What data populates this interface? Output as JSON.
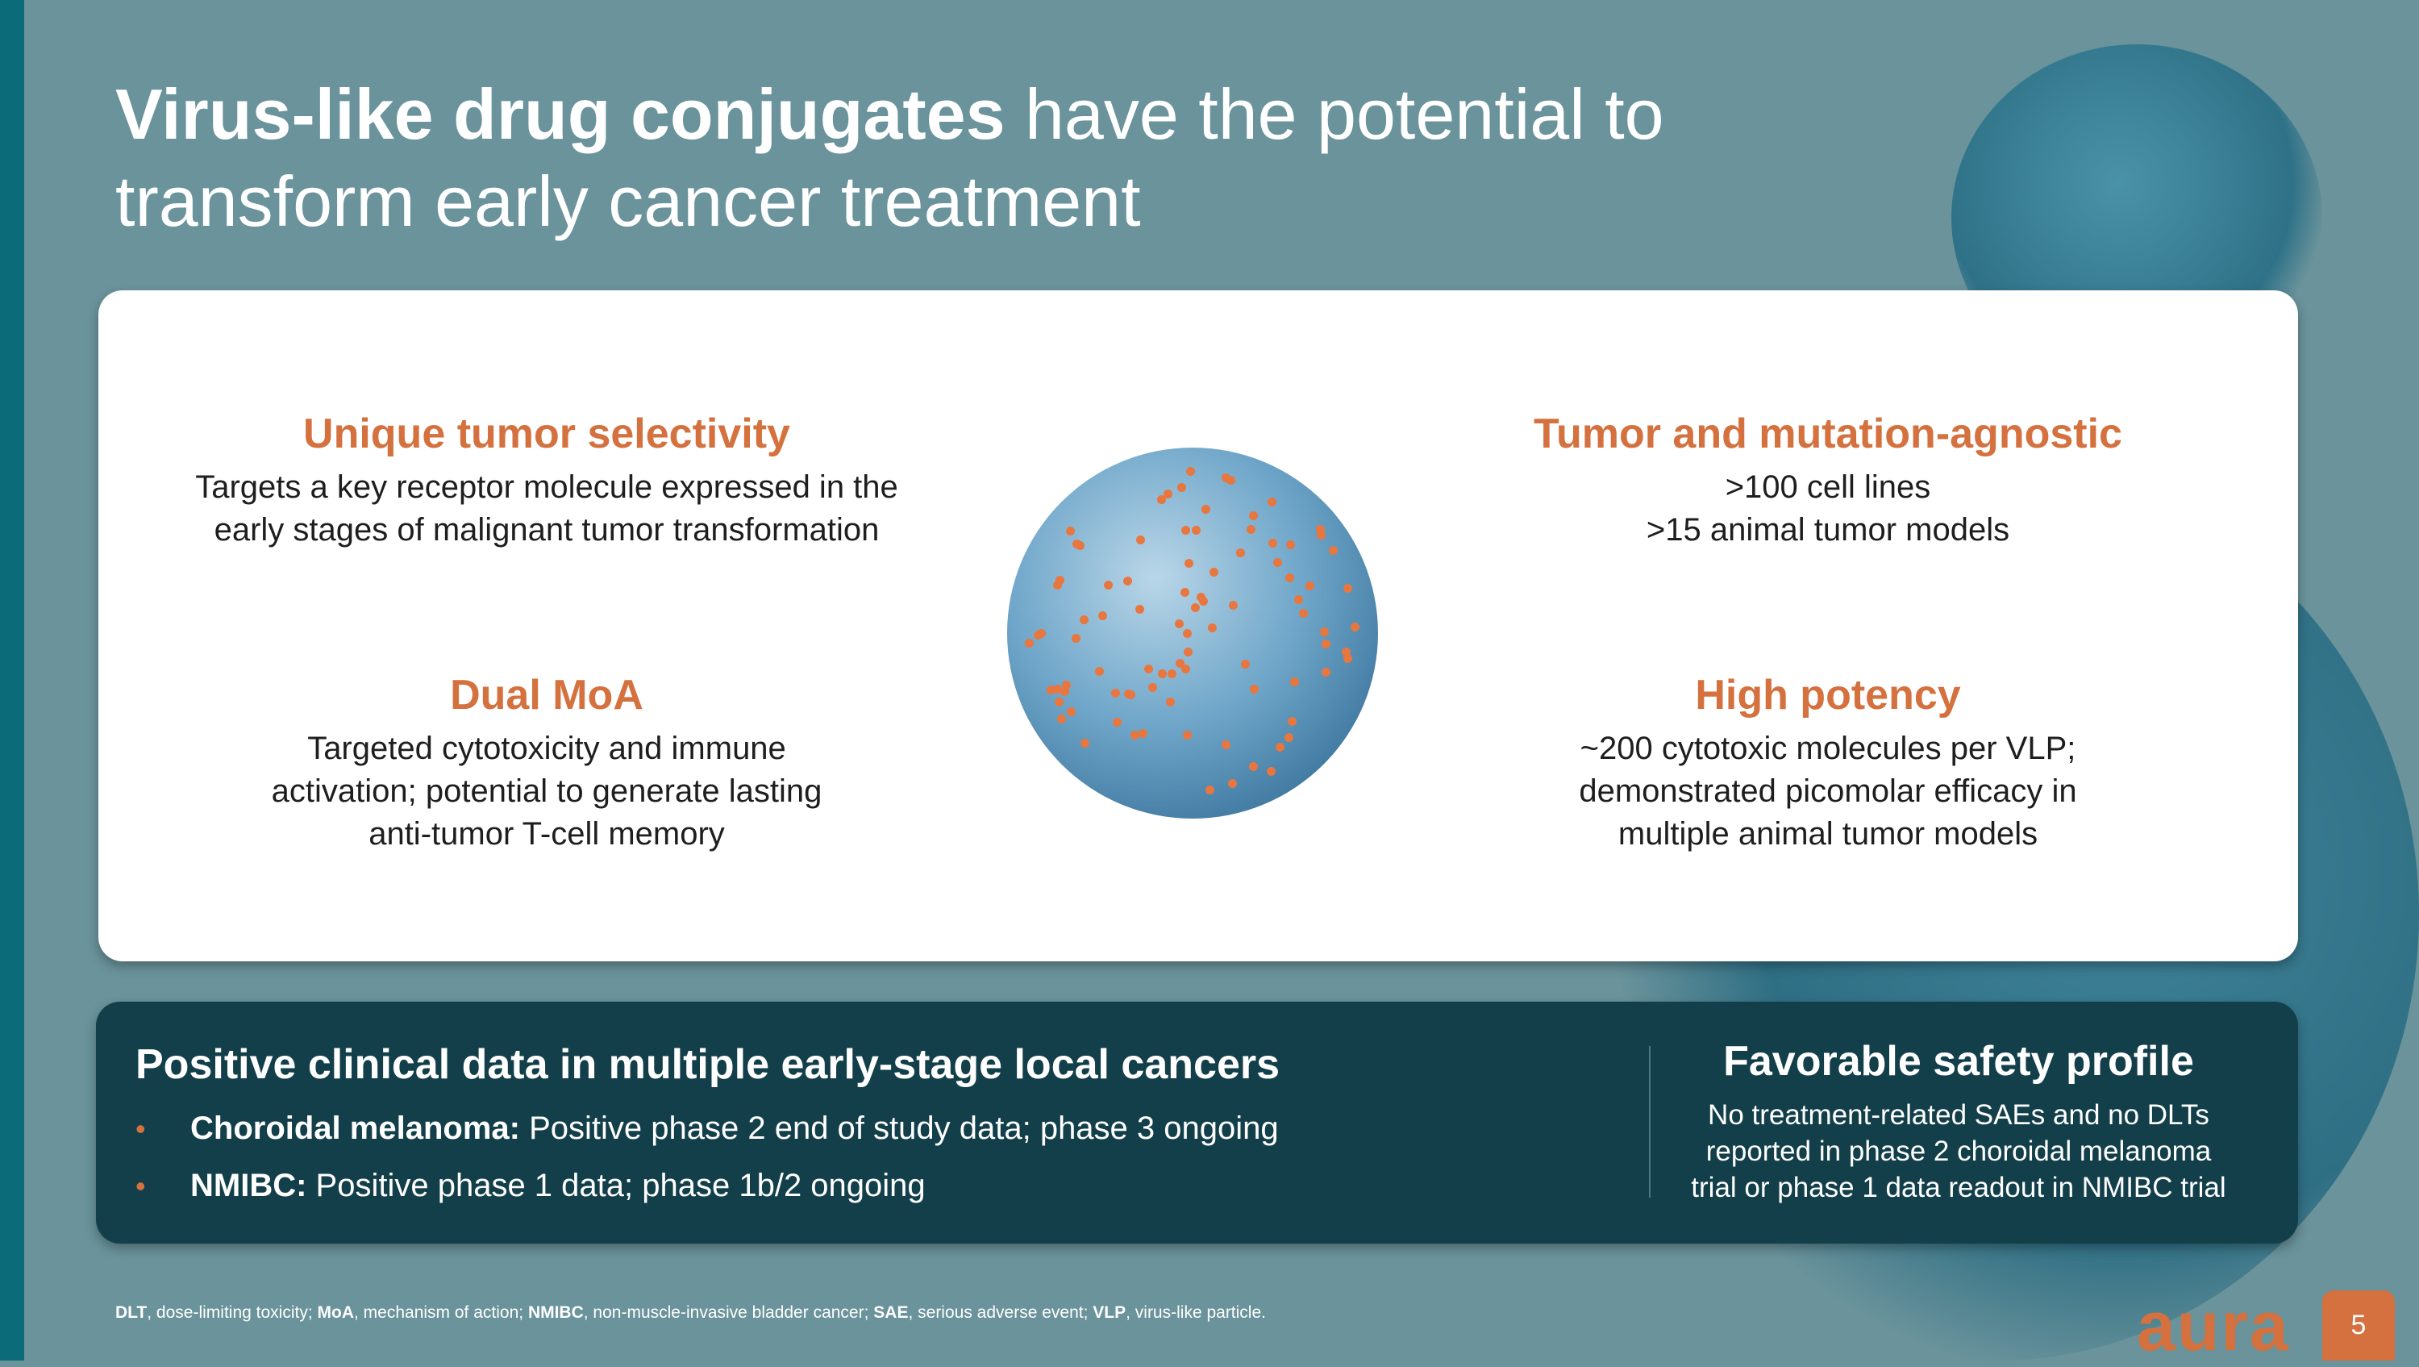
{
  "title": {
    "bold": "Virus-like drug conjugates",
    "rest": " have the potential to transform early cancer treatment"
  },
  "features": [
    {
      "heading": "Unique tumor selectivity",
      "lines": [
        "Targets a key receptor molecule expressed in the",
        "early stages of malignant tumor transformation"
      ]
    },
    {
      "heading": "Tumor and mutation-agnostic",
      "lines": [
        ">100 cell lines",
        ">15 animal tumor models"
      ]
    },
    {
      "heading": "Dual MoA",
      "lines": [
        "Targeted cytotoxicity and immune",
        "activation; potential to generate lasting",
        "anti-tumor T-cell memory"
      ]
    },
    {
      "heading": "High potency",
      "lines": [
        "~200 cytotoxic molecules per VLP;",
        "demonstrated picomolar efficacy in",
        "multiple animal tumor models"
      ]
    }
  ],
  "clinical": {
    "heading": "Positive clinical data in multiple early-stage local cancers",
    "bullets": [
      {
        "label": "Choroidal melanoma:",
        "text": " Positive phase 2 end of study data; phase 3 ongoing"
      },
      {
        "label": "NMIBC:",
        "text": " Positive phase 1 data; phase 1b/2 ongoing"
      }
    ]
  },
  "safety": {
    "heading": "Favorable safety profile",
    "lines": [
      "No treatment-related SAEs and no DLTs",
      "reported in phase 2 choroidal melanoma",
      "trial or phase 1 data readout in NMIBC trial"
    ]
  },
  "footnote": [
    {
      "abbr": "DLT",
      "def": ", dose-limiting toxicity; "
    },
    {
      "abbr": "MoA",
      "def": ", mechanism of action; "
    },
    {
      "abbr": "NMIBC",
      "def": ", non-muscle-invasive bladder cancer; "
    },
    {
      "abbr": "SAE",
      "def": ", serious adverse event; "
    },
    {
      "abbr": "VLP",
      "def": ", virus-like particle."
    }
  ],
  "logo": "aura",
  "page_number": "5",
  "colors": {
    "accent": "#d4713e",
    "background": "#6a939b",
    "dark_panel": "#123f4a"
  }
}
